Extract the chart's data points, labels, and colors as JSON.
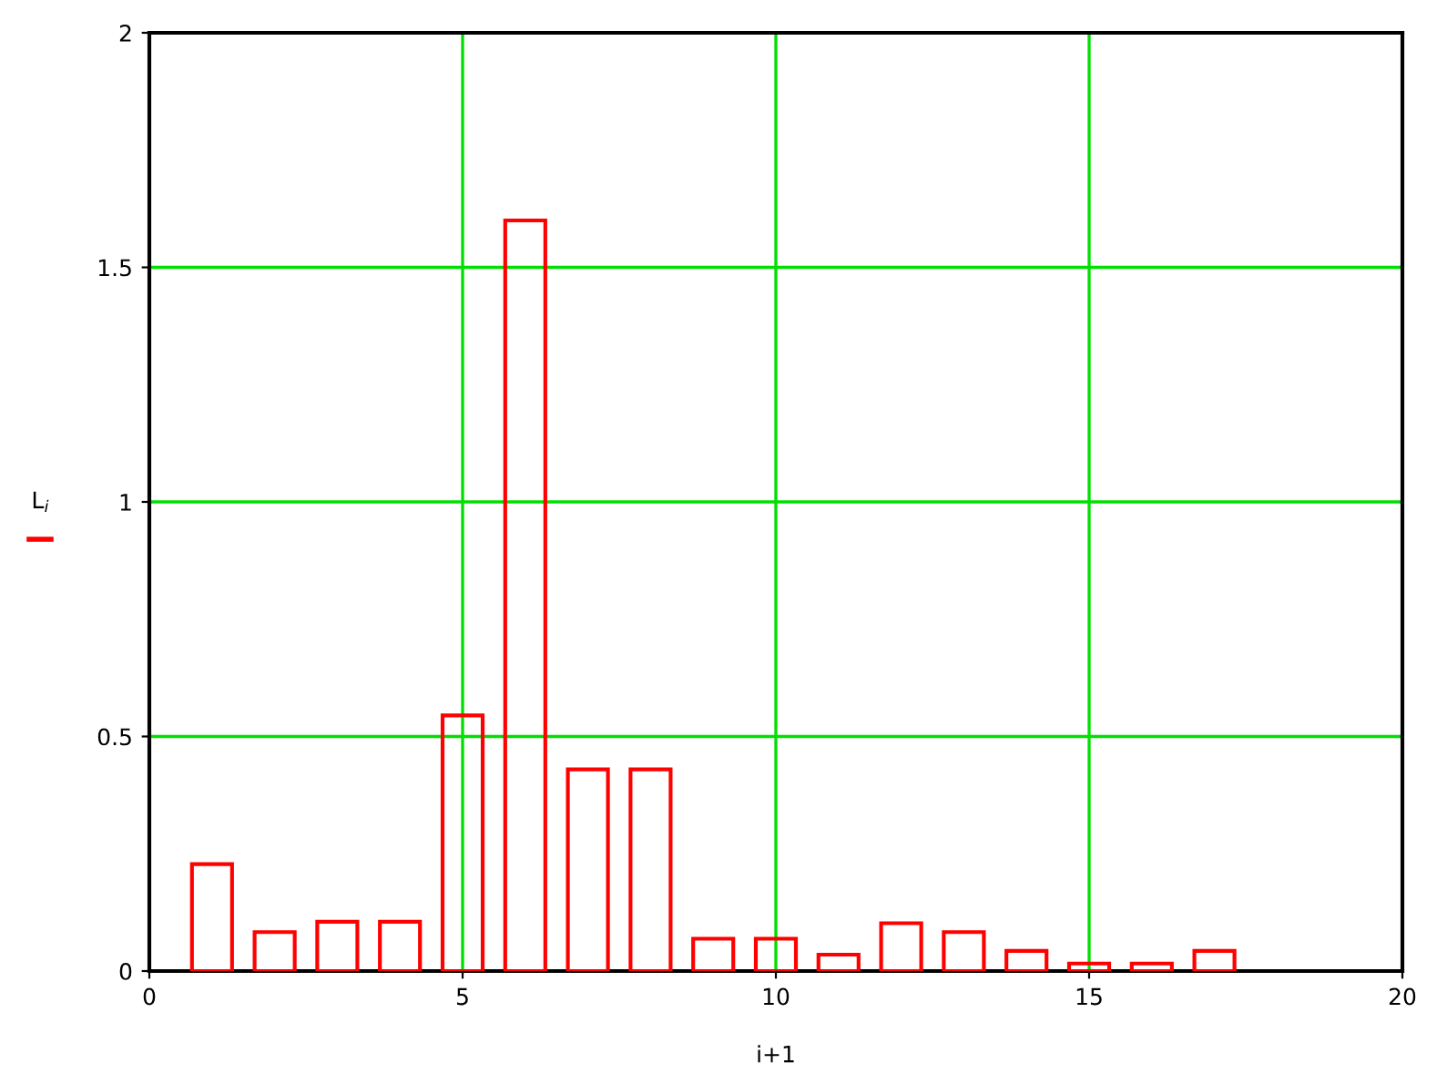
{
  "chart_data": {
    "type": "bar",
    "xlabel": "i+1",
    "ylabel": "L$_{i}$",
    "x": [
      1,
      2,
      3,
      4,
      5,
      6,
      7,
      8,
      9,
      10,
      11,
      12,
      13,
      14,
      15,
      16,
      17
    ],
    "series": [
      {
        "color": "#ff0000",
        "values": [
          0.228,
          0.083,
          0.105,
          0.105,
          0.545,
          1.6,
          0.43,
          0.43,
          0.069,
          0.069,
          0.035,
          0.102,
          0.083,
          0.043,
          0.016,
          0.016,
          0.043
        ]
      }
    ],
    "xlim": [
      0,
      20
    ],
    "xticks": [
      0,
      5,
      10,
      15,
      20
    ],
    "ylim": [
      0,
      2
    ],
    "yticks": [
      0,
      0.5,
      1,
      1.5,
      2
    ],
    "grid": true
  }
}
